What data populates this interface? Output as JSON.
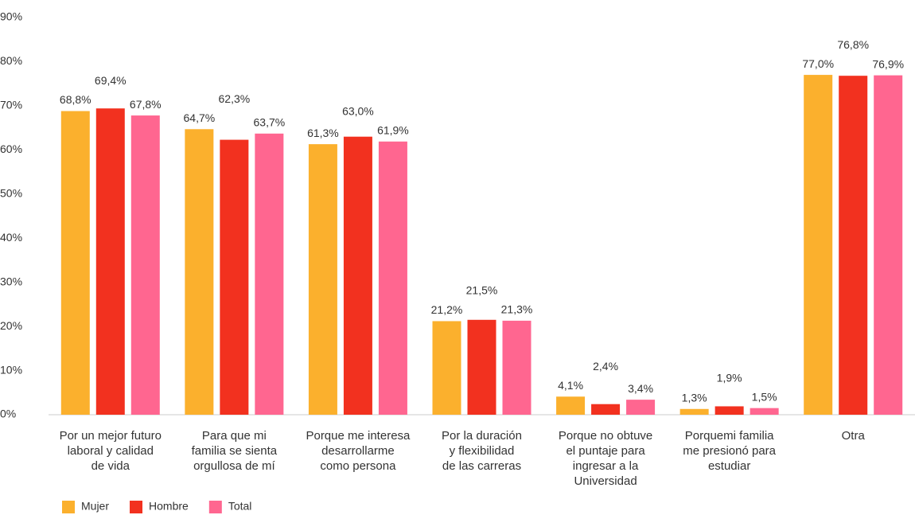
{
  "chart_data": {
    "type": "bar",
    "categories": [
      "Por un mejor futuro\nlaboral y calidad\nde vida",
      "Para que mi\nfamilia se sienta\norgullosa de mí",
      "Porque me interesa\ndesarrollarme\ncomo persona",
      "Por la duración\ny flexibilidad\nde las carreras",
      "Porque no obtuve\nel puntaje para\ningresar a la\nUniversidad",
      "Porquemi familia\nme presionó para\nestudiar",
      "Otra"
    ],
    "series": [
      {
        "name": "Mujer",
        "color": "#fbb02d",
        "values": [
          68.8,
          64.7,
          61.3,
          21.2,
          4.1,
          1.3,
          77.0
        ],
        "value_labels": [
          "68,8%",
          "64,7%",
          "61,3%",
          "21,2%",
          "4,1%",
          "1,3%",
          "77,0%"
        ]
      },
      {
        "name": "Hombre",
        "color": "#f2311f",
        "values": [
          69.4,
          62.3,
          63.0,
          21.5,
          2.4,
          1.9,
          76.8
        ],
        "value_labels": [
          "69,4%",
          "62,3%",
          "63,0%",
          "21,5%",
          "2,4%",
          "1,9%",
          "76,8%"
        ]
      },
      {
        "name": "Total",
        "color": "#ff6690",
        "values": [
          67.8,
          63.7,
          61.9,
          21.3,
          3.4,
          1.5,
          76.9
        ],
        "value_labels": [
          "67,8%",
          "63,7%",
          "61,9%",
          "21,3%",
          "3,4%",
          "1,5%",
          "76,9%"
        ]
      }
    ],
    "ylim": [
      0,
      90
    ],
    "yticks": [
      {
        "value": 0,
        "label": "0%"
      },
      {
        "value": 10,
        "label": "10%"
      },
      {
        "value": 20,
        "label": "20%"
      },
      {
        "value": 30,
        "label": "30%"
      },
      {
        "value": 40,
        "label": "40%"
      },
      {
        "value": 50,
        "label": "50%"
      },
      {
        "value": 60,
        "label": "60%"
      },
      {
        "value": 70,
        "label": "70%"
      },
      {
        "value": 80,
        "label": "80%"
      },
      {
        "value": 90,
        "label": "90%"
      }
    ],
    "legend": "bottom-left"
  }
}
